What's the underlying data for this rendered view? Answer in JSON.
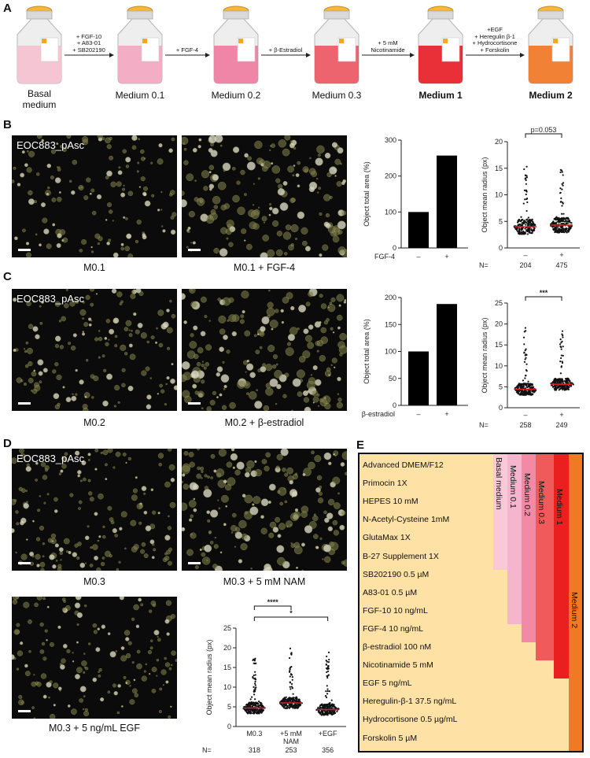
{
  "panel_letters": {
    "a": "A",
    "b": "B",
    "c": "C",
    "d": "D",
    "e": "E"
  },
  "panel_a": {
    "flasks": [
      {
        "label": "Basal\nmedium",
        "bold": false,
        "color": "#f4c2d2"
      },
      {
        "label": "Medium 0.1",
        "bold": false,
        "color": "#f2a9c2"
      },
      {
        "label": "Medium 0.2",
        "bold": false,
        "color": "#ef7fa2"
      },
      {
        "label": "Medium 0.3",
        "bold": false,
        "color": "#ec5c66"
      },
      {
        "label": "Medium 1",
        "bold": true,
        "color": "#e8242c"
      },
      {
        "label": "Medium 2",
        "bold": true,
        "color": "#f07a2a"
      }
    ],
    "arrows": [
      {
        "label": "+ FGF-10\n+ A83-01\n+ SB202190"
      },
      {
        "label": "+ FGF-4"
      },
      {
        "label": "+ β-Estradiol"
      },
      {
        "label": "+ 5 mM\nNicotinamide"
      },
      {
        "label": "+EGF\n+ Heregulin β-1\n+ Hydrocortisone\n+ Forskolin"
      }
    ]
  },
  "micrographs": {
    "b_left": {
      "title": "EOC883_pAsc",
      "caption": "M0.1"
    },
    "b_right": {
      "title": "",
      "caption": "M0.1 + FGF-4"
    },
    "c_left": {
      "title": "EOC883_pAsc",
      "caption": "M0.2"
    },
    "c_right": {
      "title": "",
      "caption": "M0.2 + β-estradiol"
    },
    "d_left": {
      "title": "EOC883_pAsc",
      "caption": "M0.3"
    },
    "d_right": {
      "title": "",
      "caption": "M0.3 + 5 mM NAM"
    },
    "d_bottom": {
      "title": "",
      "caption": "M0.3 + 5 ng/mL EGF"
    }
  },
  "chart_data": [
    {
      "id": "B-bar",
      "type": "bar",
      "ylabel": "Object total area (%)",
      "ylim": [
        0,
        300
      ],
      "yticks": [
        "0",
        "100",
        "200",
        "300"
      ],
      "factor_label": "FGF-4",
      "categories": [
        "–",
        "+"
      ],
      "values": [
        100,
        257
      ]
    },
    {
      "id": "B-scatter",
      "type": "scatter",
      "ylabel": "Object mean radius (px)",
      "ylim": [
        0,
        20
      ],
      "yticks": [
        "0",
        "5",
        "10",
        "15",
        "20"
      ],
      "categories": [
        "–",
        "+"
      ],
      "n_label": "N=",
      "n": [
        "204",
        "475"
      ],
      "means": [
        4.0,
        4.3
      ],
      "annotations": [
        {
          "text": "p=0.053",
          "between": [
            0,
            1
          ]
        }
      ]
    },
    {
      "id": "C-bar",
      "type": "bar",
      "ylabel": "Object total area (%)",
      "ylim": [
        0,
        200
      ],
      "yticks": [
        "0",
        "50",
        "100",
        "150",
        "200"
      ],
      "factor_label": "β-estradiol",
      "categories": [
        "–",
        "+"
      ],
      "values": [
        100,
        188
      ]
    },
    {
      "id": "C-scatter",
      "type": "scatter",
      "ylabel": "Object mean radius (px)",
      "ylim": [
        0,
        25
      ],
      "yticks": [
        "0",
        "5",
        "10",
        "15",
        "20",
        "25"
      ],
      "categories": [
        "–",
        "+"
      ],
      "n_label": "N=",
      "n": [
        "258",
        "249"
      ],
      "means": [
        4.4,
        5.6
      ],
      "annotations": [
        {
          "text": "***",
          "between": [
            0,
            1
          ]
        }
      ]
    },
    {
      "id": "D-scatter",
      "type": "scatter",
      "ylabel": "Object mean radius (px)",
      "ylim": [
        0,
        25
      ],
      "yticks": [
        "0",
        "5",
        "10",
        "15",
        "20",
        "25"
      ],
      "categories": [
        "M0.3",
        "+5 mM\nNAM",
        "+EGF"
      ],
      "n_label": "N=",
      "n": [
        "318",
        "253",
        "356"
      ],
      "means": [
        4.7,
        6.0,
        4.3
      ],
      "annotations": [
        {
          "text": "****",
          "between": [
            0,
            1
          ]
        },
        {
          "text": "*",
          "between": [
            0,
            2
          ]
        }
      ]
    }
  ],
  "panel_e": {
    "rows": [
      "Advanced DMEM/F12",
      "Primocin 1X",
      "HEPES 10 mM",
      "N-Acetyl-Cysteine 1mM",
      "GlutaMax 1X",
      "B-27 Supplement 1X",
      "SB202190 0.5 µM",
      "A83-01 0.5 µM",
      "FGF-10 10 ng/mL",
      "FGF-4 10 ng/mL",
      "β-estradiol 100 nM",
      "Nicotinamide 5 mM",
      "EGF 5 ng/mL",
      "Heregulin-β-1 37.5 ng/mL",
      "Hydrocortisone 0.5 µg/mL",
      "Forskolin 5 µM"
    ],
    "media": [
      {
        "label": "Basal medium",
        "color": "#f9c9d8",
        "rows_covered": 6
      },
      {
        "label": "Medium 0.1",
        "color": "#f4b5cd",
        "rows_covered": 9
      },
      {
        "label": "Medium 0.2",
        "color": "#f28aa6",
        "rows_covered": 10
      },
      {
        "label": "Medium 0.3",
        "color": "#f05a5a",
        "rows_covered": 11
      },
      {
        "label": "Medium 1",
        "color": "#ea1f1f",
        "rows_covered": 12
      },
      {
        "label": "Medium 2",
        "color": "#f07a24",
        "rows_covered": 16
      }
    ]
  }
}
